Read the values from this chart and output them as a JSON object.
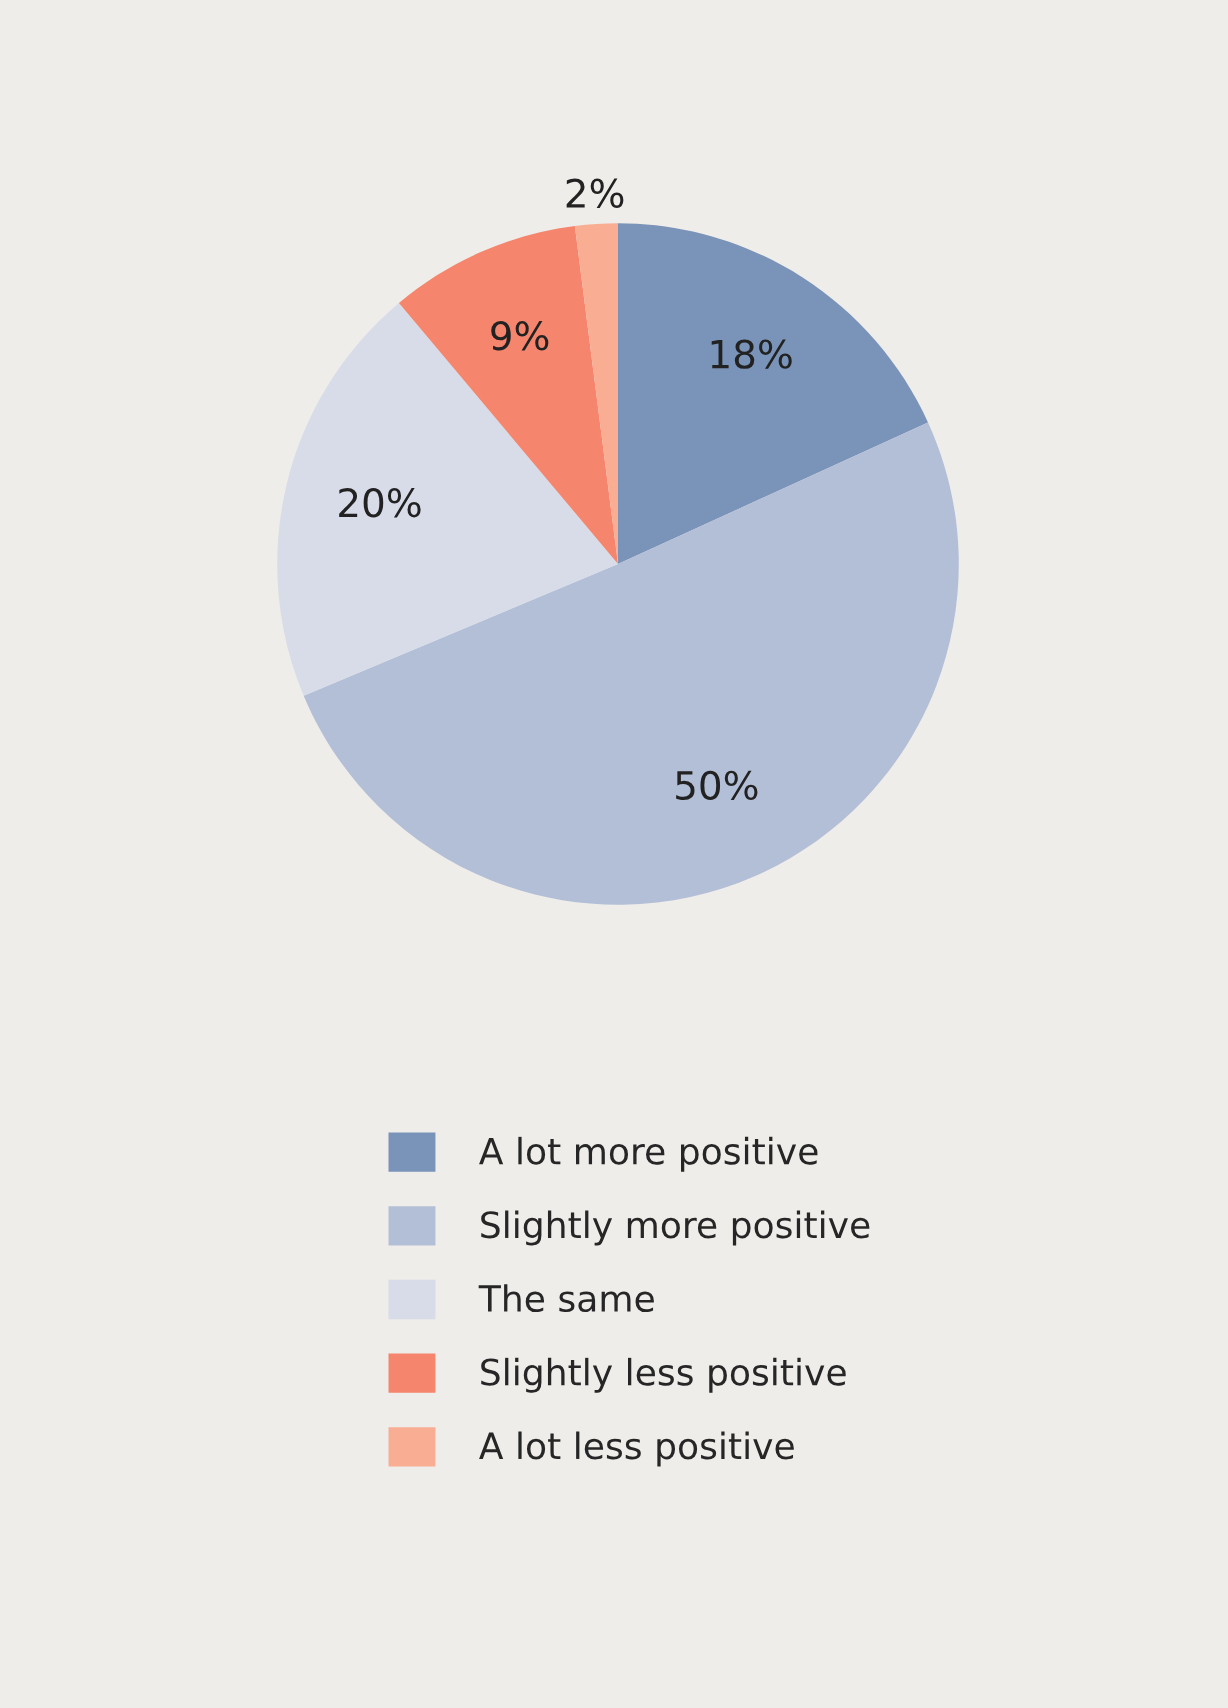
{
  "chart_data": {
    "type": "pie",
    "categories": [
      "A lot more positive",
      "Slightly more positive",
      "The same",
      "Slightly less positive",
      "A lot less positive"
    ],
    "values": [
      18,
      50,
      20,
      9,
      2
    ],
    "colors": [
      "#7a93b8",
      "#b3bfd6",
      "#d8dce8",
      "#f5856c",
      "#f9ae94"
    ],
    "value_labels": [
      "18%",
      "50%",
      "20%",
      "9%",
      "2%"
    ],
    "legend": "bottom"
  }
}
